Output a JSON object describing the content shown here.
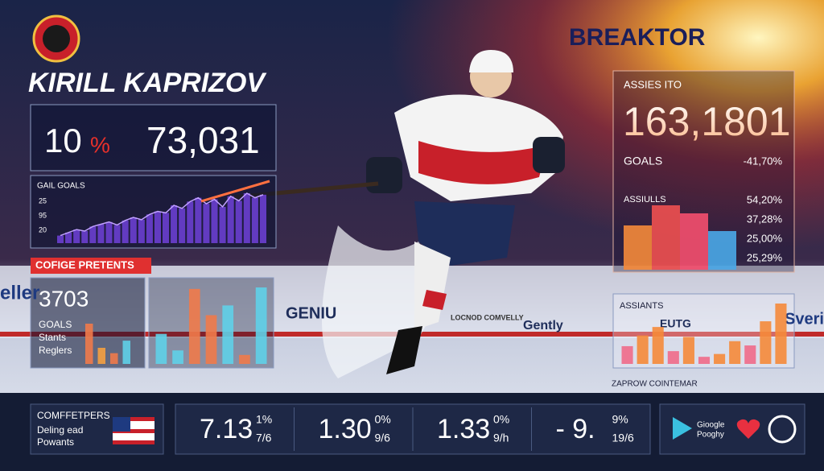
{
  "brand": "BREAKTOR",
  "player_name": "KIRILL KAPRIZOV",
  "headline": {
    "left": "10",
    "unit": "%",
    "right": "73,031"
  },
  "goals_chart": {
    "title": "GAIL GOALS",
    "ticks": [
      "25",
      "95",
      "20"
    ],
    "color": "#6a3fd0",
    "values": [
      10,
      14,
      18,
      16,
      22,
      25,
      28,
      24,
      30,
      34,
      31,
      38,
      42,
      40,
      50,
      46,
      55,
      60,
      52,
      58,
      48,
      62,
      56,
      66,
      60,
      64
    ]
  },
  "promo_badge": "COFIGE PRETENTS",
  "left_stats": {
    "value": "3703",
    "labels": [
      "GOALS",
      "Stants",
      "Reglers"
    ],
    "bars_a": [
      45,
      18,
      12,
      26
    ],
    "colors_a": [
      "#f07a4a",
      "#f5a040",
      "#f07a4a",
      "#5fd0e8"
    ],
    "bars_b": [
      40,
      18,
      100,
      65,
      78,
      12,
      102
    ],
    "colors_b": [
      "#5fd0e8",
      "#5fd0e8",
      "#f07a4a",
      "#f07a4a",
      "#5fd0e8",
      "#f07a4a",
      "#5fd0e8"
    ]
  },
  "assists_panel": {
    "title": "ASSIES ITO",
    "value": "163,1801",
    "label": "GOALS",
    "change": "-41,70%",
    "chart_title": "ASSIULLS",
    "legend": [
      "54,20%",
      "37,28%",
      "25,00%",
      "25,29%"
    ],
    "bars": [
      55,
      80,
      70,
      48
    ],
    "colors": [
      "#f58a3a",
      "#f05050",
      "#f54f6e",
      "#4aa8e8"
    ]
  },
  "assistants_panel": {
    "title": "ASSIANTS",
    "bars": [
      25,
      40,
      52,
      18,
      38,
      10,
      14,
      32,
      26,
      60,
      85
    ],
    "colors": [
      "#f06a8a",
      "#f58a3a",
      "#f58a3a",
      "#f06a8a",
      "#f58a3a",
      "#f06a8a",
      "#f58a3a",
      "#f58a3a",
      "#f06a8a",
      "#f58a3a",
      "#f58a3a"
    ]
  },
  "caption": "ZAPROW COINTEMAR",
  "arena_signs": [
    "eller",
    "GENIU",
    "LOCNOD COMVELLY",
    "Gently",
    "EUTG",
    "Sverite"
  ],
  "footer": {
    "title": "COMFFETPERS",
    "lines": [
      "Deling ead",
      "Powants"
    ],
    "stats": [
      {
        "main": "7.13",
        "sup": "1%",
        "sub": "7/6"
      },
      {
        "main": "1.30",
        "sup": "0%",
        "sub": "9/6"
      },
      {
        "main": "1.33",
        "sup": "0%",
        "sub": "9/h"
      },
      {
        "main": "- 9.",
        "sup": "9%",
        "sub": "19/6"
      }
    ],
    "app": [
      "Gioogle",
      "Pooghy"
    ]
  }
}
